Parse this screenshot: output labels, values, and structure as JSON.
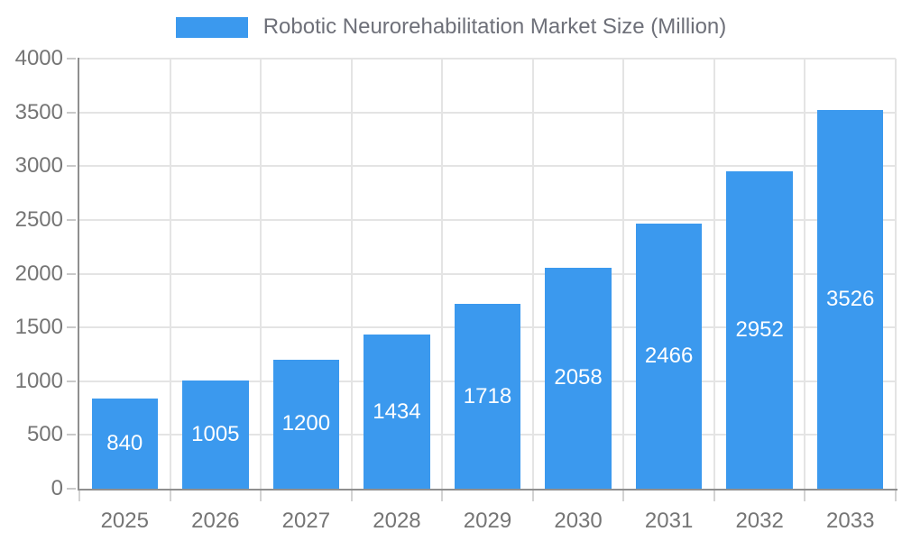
{
  "legend": {
    "label": "Robotic Neurorehabilitation Market Size (Million)"
  },
  "chart_data": {
    "type": "bar",
    "title": "Robotic Neurorehabilitation Market Size (Million)",
    "categories": [
      "2025",
      "2026",
      "2027",
      "2028",
      "2029",
      "2030",
      "2031",
      "2032",
      "2033"
    ],
    "values": [
      840,
      1005,
      1200,
      1434,
      1718,
      2058,
      2466,
      2952,
      3526
    ],
    "series": [
      {
        "name": "Robotic Neurorehabilitation Market Size (Million)",
        "values": [
          840,
          1005,
          1200,
          1434,
          1718,
          2058,
          2466,
          2952,
          3526
        ]
      }
    ],
    "xlabel": "",
    "ylabel": "",
    "ylim": [
      0,
      4000
    ],
    "y_ticks": [
      0,
      500,
      1000,
      1500,
      2000,
      2500,
      3000,
      3500,
      4000
    ],
    "grid": true,
    "legend_position": "top",
    "bar_label_position": "inside-center",
    "bar_width_fraction": 0.73
  },
  "colors": {
    "bar": "#3B99EE",
    "axis_line": "#8F8F8F",
    "grid_line": "#E4E4E4",
    "y_tick": "#C9C9C9",
    "x_tick": "#D3D3D3",
    "axis_label_text": "#757575",
    "legend_text": "#6E7079",
    "bar_label_text": "#FFFFFF",
    "background": "#FFFFFF"
  }
}
